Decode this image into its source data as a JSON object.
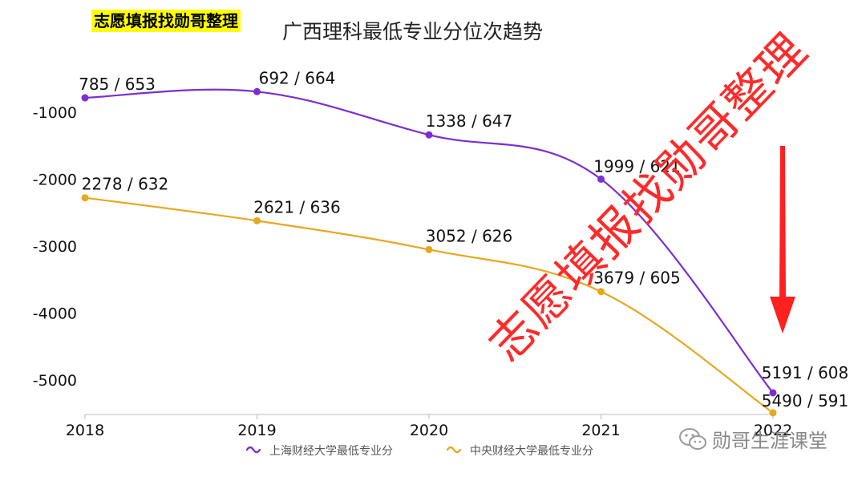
{
  "header": {
    "tag": "志愿填报找勋哥整理",
    "title": "广西理科最低专业分位次趋势"
  },
  "footer": {
    "wechat_icon": "wechat-icon",
    "account": "勋哥生涯课堂"
  },
  "watermark": {
    "text": "志愿填报找勋哥整理",
    "color": "#ff2a2a"
  },
  "arrow": {
    "icon": "down-arrow-icon",
    "color": "#ff2020"
  },
  "chart_data": {
    "type": "line",
    "title": "广西理科最低专业分位次趋势",
    "categories": [
      "2018",
      "2019",
      "2020",
      "2021",
      "2022"
    ],
    "ylim": [
      -5500,
      0
    ],
    "yticks": [
      -1000,
      -2000,
      -3000,
      -4000,
      -5000
    ],
    "grid": false,
    "legend_position": "bottom",
    "series": [
      {
        "name": "上海财经大学最低专业分",
        "color": "#7b2fd0",
        "values": [
          -785,
          -692,
          -1338,
          -1999,
          -5191
        ],
        "labels": [
          "785 / 653",
          "692 / 664",
          "1338 / 647",
          "1999 / 621",
          "5191 / 608"
        ]
      },
      {
        "name": "中央财经大学最低专业分",
        "color": "#e6a820",
        "values": [
          -2278,
          -2621,
          -3052,
          -3679,
          -5490
        ],
        "labels": [
          "2278 / 632",
          "2621 / 636",
          "3052 / 626",
          "3679 / 605",
          "5490 / 591"
        ]
      }
    ]
  }
}
